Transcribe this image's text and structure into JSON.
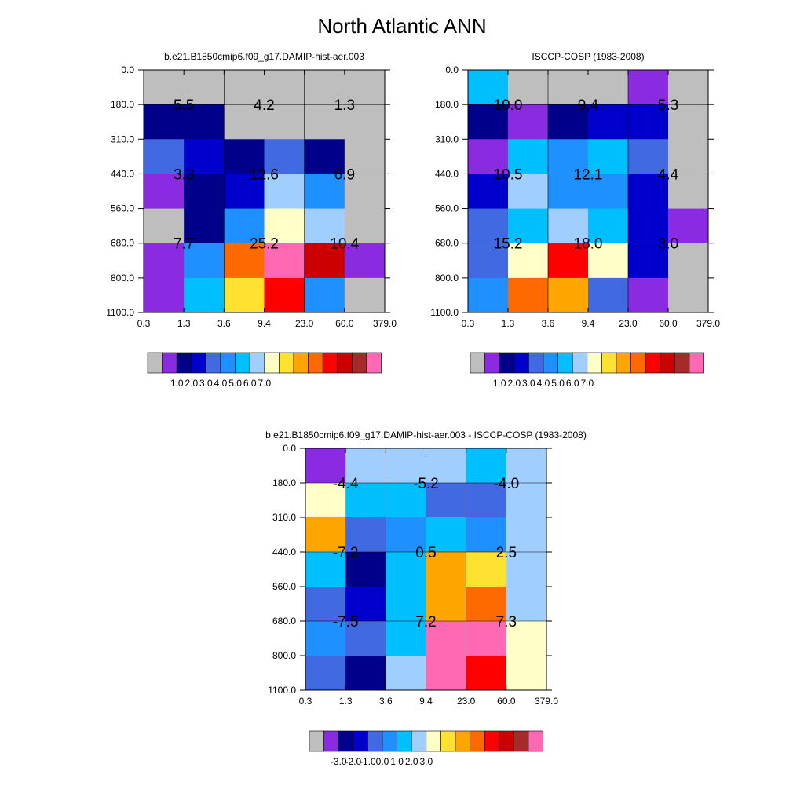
{
  "page_title": "North Atlantic ANN",
  "palettes": {
    "abs": [
      "#bebebe",
      "#8a2be2",
      "#00008b",
      "#0000cd",
      "#4169e1",
      "#1e90ff",
      "#00bfff",
      "#a0cfff",
      "#ffffc8",
      "#ffe22f",
      "#ffa500",
      "#ff6a00",
      "#ff0000",
      "#cd0000",
      "#a52a2a",
      "#ff69b4"
    ],
    "diff": [
      "#bebebe",
      "#8a2be2",
      "#00008b",
      "#0000cd",
      "#4169e1",
      "#1e90ff",
      "#00bfff",
      "#a0cfff",
      "#ffffc8",
      "#ffe22f",
      "#ffa500",
      "#ff6a00",
      "#ff0000",
      "#cd0000",
      "#a52a2a",
      "#ff69b4"
    ]
  },
  "chart_data": [
    {
      "type": "heatmap",
      "title": "b.e21.B1850cmip6.f09_g17.DAMIP-hist-aer.003",
      "x_edges": [
        "0.3",
        "1.3",
        "3.6",
        "9.4",
        "23.0",
        "60.0",
        "379.0"
      ],
      "y_edges": [
        "0.0",
        "180.0",
        "310.0",
        "440.0",
        "560.0",
        "680.0",
        "800.0",
        "1100.0"
      ],
      "cells": [
        [
          0,
          0,
          0,
          0,
          0,
          0
        ],
        [
          2,
          2,
          0,
          0,
          0,
          0
        ],
        [
          4,
          3,
          2,
          4,
          2,
          0
        ],
        [
          1,
          2,
          3,
          7,
          5,
          0
        ],
        [
          0,
          2,
          5,
          8,
          7,
          0
        ],
        [
          1,
          5,
          11,
          15,
          13,
          1
        ],
        [
          1,
          6,
          9,
          12,
          5,
          0
        ]
      ],
      "group_labels": [
        {
          "col": 1,
          "row": 1,
          "text": "5.5"
        },
        {
          "col": 3,
          "row": 1,
          "text": "4.2"
        },
        {
          "col": 5,
          "row": 1,
          "text": "1.3"
        },
        {
          "col": 1,
          "row": 3,
          "text": "3.3"
        },
        {
          "col": 3,
          "row": 3,
          "text": "12.6"
        },
        {
          "col": 5,
          "row": 3,
          "text": "6.9"
        },
        {
          "col": 1,
          "row": 5,
          "text": "7.7"
        },
        {
          "col": 3,
          "row": 5,
          "text": "25.2"
        },
        {
          "col": 5,
          "row": 5,
          "text": "10.4"
        }
      ],
      "colorbar_labels": [
        "1.0",
        "2.0",
        "3.0",
        "4.0",
        "5.0",
        "6.0",
        "7.0"
      ],
      "palette": "abs"
    },
    {
      "type": "heatmap",
      "title": "ISCCP-COSP (1983-2008)",
      "x_edges": [
        "0.3",
        "1.3",
        "3.6",
        "9.4",
        "23.0",
        "60.0",
        "379.0"
      ],
      "y_edges": [
        "0.0",
        "180.0",
        "310.0",
        "440.0",
        "560.0",
        "680.0",
        "800.0",
        "1100.0"
      ],
      "cells": [
        [
          6,
          0,
          0,
          0,
          1,
          0
        ],
        [
          2,
          1,
          2,
          3,
          3,
          0
        ],
        [
          1,
          6,
          5,
          6,
          4,
          0
        ],
        [
          3,
          7,
          5,
          5,
          3,
          0
        ],
        [
          4,
          6,
          7,
          6,
          3,
          1
        ],
        [
          4,
          8,
          12,
          8,
          3,
          0
        ],
        [
          5,
          11,
          10,
          4,
          1,
          0
        ]
      ],
      "group_labels": [
        {
          "col": 1,
          "row": 1,
          "text": "10.0"
        },
        {
          "col": 3,
          "row": 1,
          "text": "9.4"
        },
        {
          "col": 5,
          "row": 1,
          "text": "5.3"
        },
        {
          "col": 1,
          "row": 3,
          "text": "10.5"
        },
        {
          "col": 3,
          "row": 3,
          "text": "12.1"
        },
        {
          "col": 5,
          "row": 3,
          "text": "4.4"
        },
        {
          "col": 1,
          "row": 5,
          "text": "15.2"
        },
        {
          "col": 3,
          "row": 5,
          "text": "18.0"
        },
        {
          "col": 5,
          "row": 5,
          "text": "3.0"
        }
      ],
      "colorbar_labels": [
        "1.0",
        "2.0",
        "3.0",
        "4.0",
        "5.0",
        "6.0",
        "7.0"
      ],
      "palette": "abs"
    },
    {
      "type": "heatmap",
      "title": "b.e21.B1850cmip6.f09_g17.DAMIP-hist-aer.003 - ISCCP-COSP (1983-2008)",
      "x_edges": [
        "0.3",
        "1.3",
        "3.6",
        "9.4",
        "23.0",
        "60.0",
        "379.0"
      ],
      "y_edges": [
        "0.0",
        "180.0",
        "310.0",
        "440.0",
        "560.0",
        "680.0",
        "800.0",
        "1100.0"
      ],
      "cells": [
        [
          1,
          7,
          7,
          7,
          6,
          7
        ],
        [
          8,
          6,
          6,
          4,
          4,
          7
        ],
        [
          10,
          4,
          5,
          6,
          5,
          7
        ],
        [
          6,
          2,
          6,
          10,
          9,
          7
        ],
        [
          4,
          3,
          6,
          10,
          11,
          7
        ],
        [
          5,
          4,
          6,
          15,
          15,
          8
        ],
        [
          4,
          2,
          7,
          15,
          12,
          8
        ]
      ],
      "group_labels": [
        {
          "col": 1,
          "row": 1,
          "text": "-4.4"
        },
        {
          "col": 3,
          "row": 1,
          "text": "-5.2"
        },
        {
          "col": 5,
          "row": 1,
          "text": "-4.0"
        },
        {
          "col": 1,
          "row": 3,
          "text": "-7.2"
        },
        {
          "col": 3,
          "row": 3,
          "text": "0.5"
        },
        {
          "col": 5,
          "row": 3,
          "text": "2.5"
        },
        {
          "col": 1,
          "row": 5,
          "text": "-7.5"
        },
        {
          "col": 3,
          "row": 5,
          "text": "7.2"
        },
        {
          "col": 5,
          "row": 5,
          "text": "7.3"
        }
      ],
      "colorbar_labels": [
        "-3.0",
        "-2.0",
        "-1.0",
        "0.0",
        "1.0",
        "2.0",
        "3.0"
      ],
      "palette": "diff"
    }
  ]
}
